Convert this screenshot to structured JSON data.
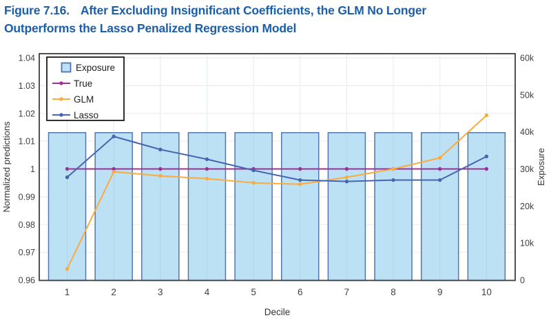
{
  "figure": {
    "number": "Figure 7.16.",
    "title_line1": "After Excluding Insignificant Coefficients, the GLM No Longer",
    "title_line2": "Outperforms the Lasso Penalized Regression Model"
  },
  "colors": {
    "title_blue": "#1B5EA9",
    "exposure_fill": "#BCE1F5",
    "exposure_stroke": "#5376AC",
    "legend_swatch_stroke": "#4B74B4",
    "true_line": "#9B3192",
    "glm_line": "#FAAB3C",
    "lasso_line": "#4565B0",
    "grid_h": "#EAEAF1",
    "grid_v": "#E4EBF3",
    "bar_inner_grid": "#A9CCE3",
    "plot_border": "#3D3D3D",
    "tick_text": "#404040",
    "axis_title_text": "#333333",
    "legend_text": "#1F1F1F",
    "legend_border": "#1A1A1A"
  },
  "chart_data": {
    "type": "combo",
    "categories": [
      "1",
      "2",
      "3",
      "4",
      "5",
      "6",
      "7",
      "8",
      "9",
      "10"
    ],
    "xlabel": "Decile",
    "left_axis": {
      "label": "Normalized predictions",
      "range": [
        0.96,
        1.04
      ],
      "ticks": [
        {
          "v": 1.04,
          "label": "1.04"
        },
        {
          "v": 1.03,
          "label": "1.03"
        },
        {
          "v": 1.02,
          "label": "1.02"
        },
        {
          "v": 1.01,
          "label": "1.01"
        },
        {
          "v": 1.0,
          "label": "1"
        },
        {
          "v": 0.99,
          "label": "0.99"
        },
        {
          "v": 0.98,
          "label": "0.98"
        },
        {
          "v": 0.97,
          "label": "0.97"
        },
        {
          "v": 0.96,
          "label": "0.96"
        }
      ]
    },
    "right_axis": {
      "label": "Exposure",
      "range": [
        0,
        60000
      ],
      "ticks": [
        {
          "v": 60000,
          "label": "60k"
        },
        {
          "v": 50000,
          "label": "50k"
        },
        {
          "v": 40000,
          "label": "40k"
        },
        {
          "v": 30000,
          "label": "30k"
        },
        {
          "v": 20000,
          "label": "20k"
        },
        {
          "v": 10000,
          "label": "10k"
        },
        {
          "v": 0,
          "label": "0"
        }
      ]
    },
    "bars": {
      "name": "Exposure",
      "axis": "right",
      "values": [
        39800,
        39800,
        39800,
        39800,
        39800,
        39800,
        39800,
        39800,
        39800,
        39800
      ]
    },
    "series": [
      {
        "name": "True",
        "axis": "left",
        "color_key": "true_line",
        "values": [
          1.0,
          1.0,
          1.0,
          1.0,
          1.0,
          1.0,
          1.0,
          1.0,
          1.0,
          1.0
        ]
      },
      {
        "name": "GLM",
        "axis": "left",
        "color_key": "glm_line",
        "values": [
          0.964,
          0.999,
          0.9975,
          0.9965,
          0.995,
          0.9945,
          0.997,
          1.0,
          1.004,
          1.0193
        ]
      },
      {
        "name": "Lasso",
        "axis": "left",
        "color_key": "lasso_line",
        "values": [
          0.997,
          1.0117,
          1.007,
          1.0035,
          0.9995,
          0.996,
          0.9955,
          0.996,
          0.996,
          1.0045
        ]
      }
    ],
    "legend": {
      "position": "top-left",
      "items": [
        "Exposure",
        "True",
        "GLM",
        "Lasso"
      ]
    },
    "grid": true
  }
}
